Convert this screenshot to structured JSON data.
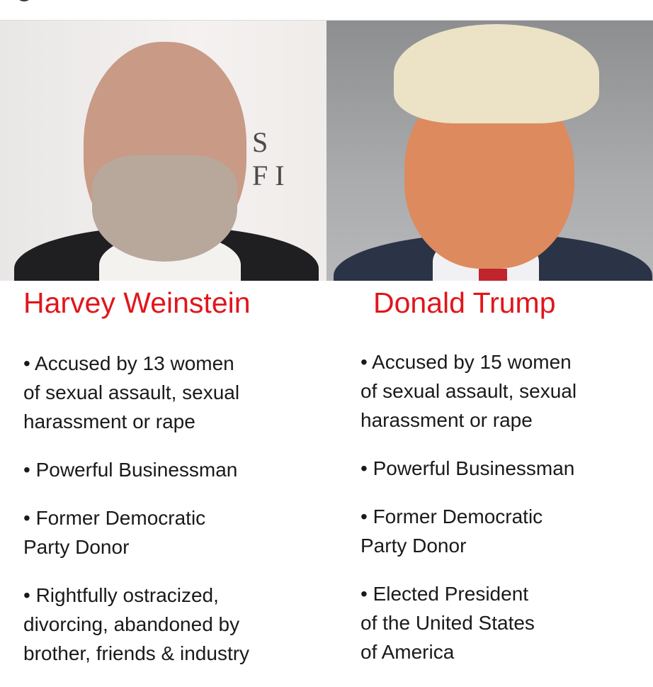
{
  "photos": {
    "left": {
      "subject": "Harvey Weinstein",
      "backdrop_text": "S FI"
    },
    "right": {
      "subject": "Donald Trump"
    }
  },
  "colors": {
    "name": "#e0161b",
    "text": "#1a1a1a"
  },
  "left": {
    "name": "Harvey Weinstein",
    "items": [
      "• Accused by 13 women\nof sexual assault, sexual\nharassment or rape",
      "• Powerful Businessman",
      "• Former Democratic\nParty Donor",
      "• Rightfully ostracized,\ndivorcing, abandoned by\nbrother, friends & industry"
    ]
  },
  "right": {
    "name": "Donald Trump",
    "items": [
      "• Accused by 15 women\nof sexual assault, sexual\nharassment or rape",
      "• Powerful Businessman",
      "• Former Democratic\nParty Donor",
      "• Elected President\nof the United States\nof America"
    ]
  }
}
